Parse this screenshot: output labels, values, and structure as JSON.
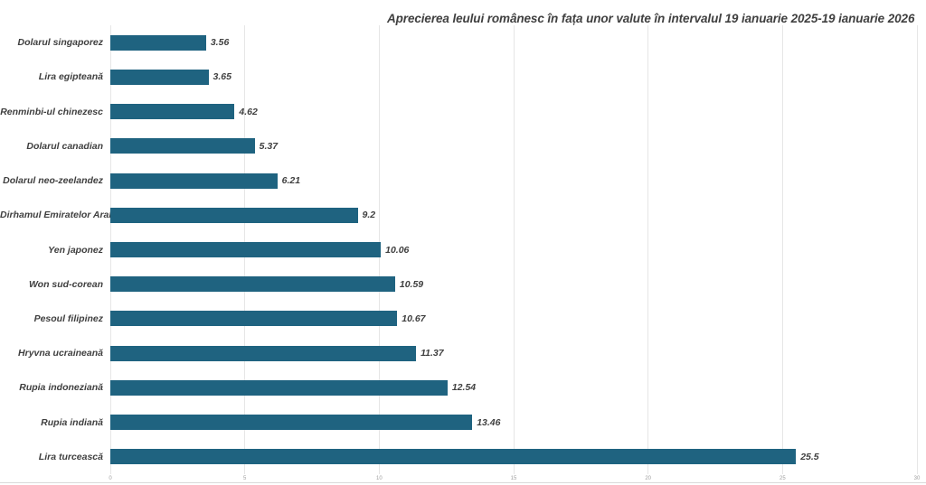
{
  "title": "Aprecierea leului românesc în fața unor valute în intervalul 19 ianuarie 2025-19 ianuarie 2026",
  "colors": {
    "bar": "#1f6380",
    "title_text": "#404040",
    "label_text": "#3f3f3f",
    "gridline": "#e6e6e6",
    "axis_line": "#d9d9d9",
    "tick_text": "#a0a0a0",
    "background": "#ffffff"
  },
  "chart_data": {
    "type": "bar",
    "orientation": "horizontal",
    "title": "Aprecierea leului românesc în fața unor valute în intervalul 19 ianuarie 2025-19 ianuarie 2026",
    "categories": [
      "Dolarul singaporez",
      "Lira egipteană",
      "Renminbi-ul chinezesc",
      "Dolarul canadian",
      "Dolarul neo-zeelandez",
      "Dirhamul Emiratelor Arabe",
      "Yen japonez",
      "Won sud-corean",
      "Pesoul filipinez",
      "Hryvna ucraineană",
      "Rupia indoneziană",
      "Rupia indiană",
      "Lira turcească"
    ],
    "values": [
      3.56,
      3.65,
      4.62,
      5.37,
      6.21,
      9.2,
      10.06,
      10.59,
      10.67,
      11.37,
      12.54,
      13.46,
      25.5
    ],
    "data_labels": [
      "3.56",
      "3.65",
      "4.62",
      "5.37",
      "6.21",
      "9.2",
      "10.06",
      "10.59",
      "10.67",
      "11.37",
      "12.54",
      "13.46",
      "25.5"
    ],
    "xlabel": "",
    "ylabel": "",
    "xlim": [
      0,
      30
    ],
    "x_ticks": [
      0,
      5,
      10,
      15,
      20,
      25,
      30
    ],
    "grid": true,
    "legend": "none"
  }
}
